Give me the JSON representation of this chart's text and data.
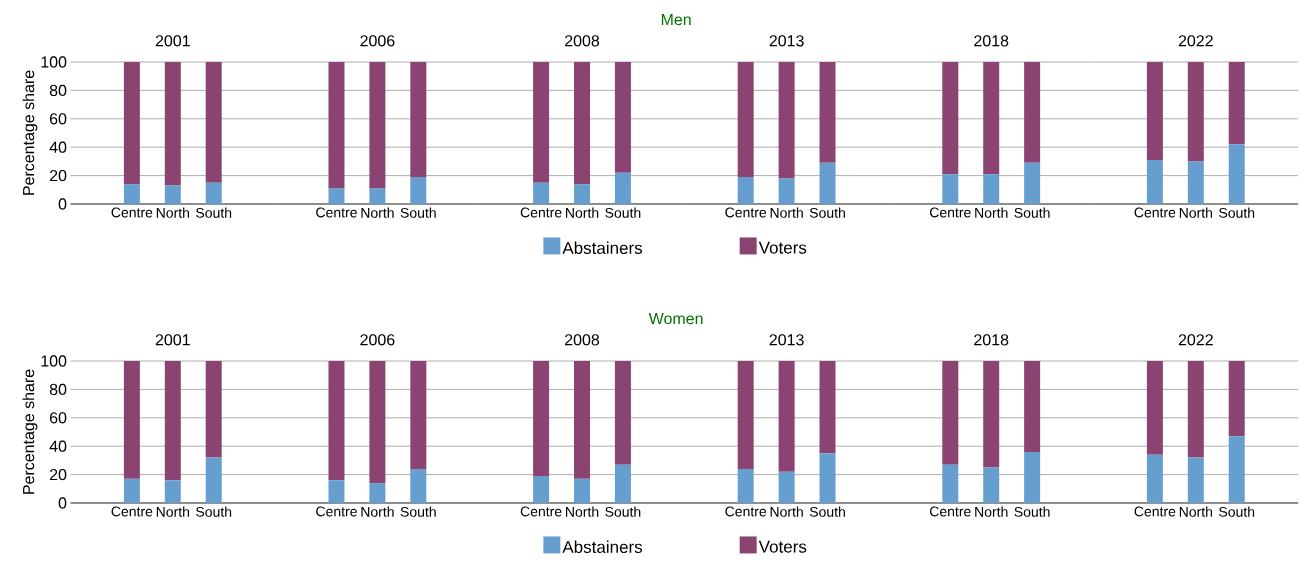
{
  "chart_data": [
    {
      "type": "bar",
      "stacked": true,
      "title": "2001",
      "annotations": [
        "Men"
      ],
      "ylabel": "Percentage share",
      "legend": "bottom",
      "grid": "y",
      "categories": [
        "Centre",
        "North",
        "South"
      ],
      "ylim": [
        0,
        100
      ],
      "yticks": [
        0,
        20,
        40,
        60,
        80,
        100
      ],
      "series": [
        {
          "name": "Abstainers",
          "color": "#669fcf",
          "values": [
            14,
            13,
            15
          ]
        },
        {
          "name": "Voters",
          "color": "#8b4472",
          "values": [
            86,
            87,
            85
          ]
        }
      ]
    },
    {
      "type": "bar",
      "stacked": true,
      "title": "2006",
      "grid": "y",
      "tick_labels": "x",
      "categories": [
        "Centre",
        "North",
        "South"
      ],
      "ylim": [
        0,
        100
      ],
      "yticks": [
        0,
        20,
        40,
        60,
        80,
        100
      ],
      "series": [
        {
          "color": "#669fcf",
          "values": [
            11,
            11,
            19
          ]
        },
        {
          "color": "#8b4472",
          "values": [
            89,
            89,
            81
          ]
        }
      ]
    },
    {
      "type": "bar",
      "stacked": true,
      "title": "2008",
      "grid": "y",
      "tick_labels": "x",
      "categories": [
        "Centre",
        "North",
        "South"
      ],
      "ylim": [
        0,
        100
      ],
      "yticks": [
        0,
        20,
        40,
        60,
        80,
        100
      ],
      "series": [
        {
          "color": "#669fcf",
          "values": [
            15,
            14,
            22
          ]
        },
        {
          "color": "#8b4472",
          "values": [
            85,
            86,
            78
          ]
        }
      ]
    },
    {
      "type": "bar",
      "stacked": true,
      "title": "2013",
      "grid": "y",
      "tick_labels": "x",
      "categories": [
        "Centre",
        "North",
        "South"
      ],
      "ylim": [
        0,
        100
      ],
      "yticks": [
        0,
        20,
        40,
        60,
        80,
        100
      ],
      "series": [
        {
          "color": "#669fcf",
          "values": [
            19,
            18,
            29
          ]
        },
        {
          "color": "#8b4472",
          "values": [
            81,
            82,
            71
          ]
        }
      ]
    },
    {
      "type": "bar",
      "stacked": true,
      "title": "2018",
      "grid": "y",
      "tick_labels": "x",
      "categories": [
        "Centre",
        "North",
        "South"
      ],
      "ylim": [
        0,
        100
      ],
      "yticks": [
        0,
        20,
        40,
        60,
        80,
        100
      ],
      "series": [
        {
          "color": "#669fcf",
          "values": [
            21,
            21,
            29
          ]
        },
        {
          "color": "#8b4472",
          "values": [
            79,
            79,
            71
          ]
        }
      ]
    },
    {
      "type": "bar",
      "stacked": true,
      "title": "2022",
      "grid": "y",
      "tick_labels": "x",
      "categories": [
        "Centre",
        "North",
        "South"
      ],
      "ylim": [
        0,
        100
      ],
      "yticks": [
        0,
        20,
        40,
        60,
        80,
        100
      ],
      "series": [
        {
          "color": "#669fcf",
          "values": [
            31,
            30,
            42
          ]
        },
        {
          "color": "#8b4472",
          "values": [
            69,
            70,
            58
          ]
        }
      ]
    },
    {
      "type": "bar",
      "stacked": true,
      "title": "2001",
      "annotations": [
        "Women"
      ],
      "ylabel": "Percentage share",
      "legend": "bottom",
      "grid": "y",
      "categories": [
        "Centre",
        "North",
        "South"
      ],
      "ylim": [
        0,
        100
      ],
      "yticks": [
        0,
        20,
        40,
        60,
        80,
        100
      ],
      "series": [
        {
          "name": "Abstainers",
          "color": "#669fcf",
          "values": [
            17,
            16,
            32
          ]
        },
        {
          "name": "Voters",
          "color": "#8b4472",
          "values": [
            83,
            84,
            68
          ]
        }
      ]
    },
    {
      "type": "bar",
      "stacked": true,
      "title": "2006",
      "grid": "y",
      "tick_labels": "x",
      "categories": [
        "Centre",
        "North",
        "South"
      ],
      "ylim": [
        0,
        100
      ],
      "yticks": [
        0,
        20,
        40,
        60,
        80,
        100
      ],
      "series": [
        {
          "color": "#669fcf",
          "values": [
            16,
            14,
            24
          ]
        },
        {
          "color": "#8b4472",
          "values": [
            84,
            86,
            76
          ]
        }
      ]
    },
    {
      "type": "bar",
      "stacked": true,
      "title": "2008",
      "grid": "y",
      "tick_labels": "x",
      "categories": [
        "Centre",
        "North",
        "South"
      ],
      "ylim": [
        0,
        100
      ],
      "yticks": [
        0,
        20,
        40,
        60,
        80,
        100
      ],
      "series": [
        {
          "color": "#669fcf",
          "values": [
            19,
            17,
            27
          ]
        },
        {
          "color": "#8b4472",
          "values": [
            81,
            83,
            73
          ]
        }
      ]
    },
    {
      "type": "bar",
      "stacked": true,
      "title": "2013",
      "grid": "y",
      "tick_labels": "x",
      "categories": [
        "Centre",
        "North",
        "South"
      ],
      "ylim": [
        0,
        100
      ],
      "yticks": [
        0,
        20,
        40,
        60,
        80,
        100
      ],
      "series": [
        {
          "color": "#669fcf",
          "values": [
            24,
            22,
            35
          ]
        },
        {
          "color": "#8b4472",
          "values": [
            76,
            78,
            65
          ]
        }
      ]
    },
    {
      "type": "bar",
      "stacked": true,
      "title": "2018",
      "grid": "y",
      "tick_labels": "x",
      "categories": [
        "Centre",
        "North",
        "South"
      ],
      "ylim": [
        0,
        100
      ],
      "yticks": [
        0,
        20,
        40,
        60,
        80,
        100
      ],
      "series": [
        {
          "color": "#669fcf",
          "values": [
            27,
            25,
            36
          ]
        },
        {
          "color": "#8b4472",
          "values": [
            73,
            75,
            64
          ]
        }
      ]
    },
    {
      "type": "bar",
      "stacked": true,
      "title": "2022",
      "grid": "y",
      "tick_labels": "x",
      "categories": [
        "Centre",
        "North",
        "South"
      ],
      "ylim": [
        0,
        100
      ],
      "yticks": [
        0,
        20,
        40,
        60,
        80,
        100
      ],
      "series": [
        {
          "color": "#669fcf",
          "values": [
            34,
            32,
            47
          ]
        },
        {
          "color": "#8b4472",
          "values": [
            66,
            68,
            53
          ]
        }
      ]
    }
  ]
}
